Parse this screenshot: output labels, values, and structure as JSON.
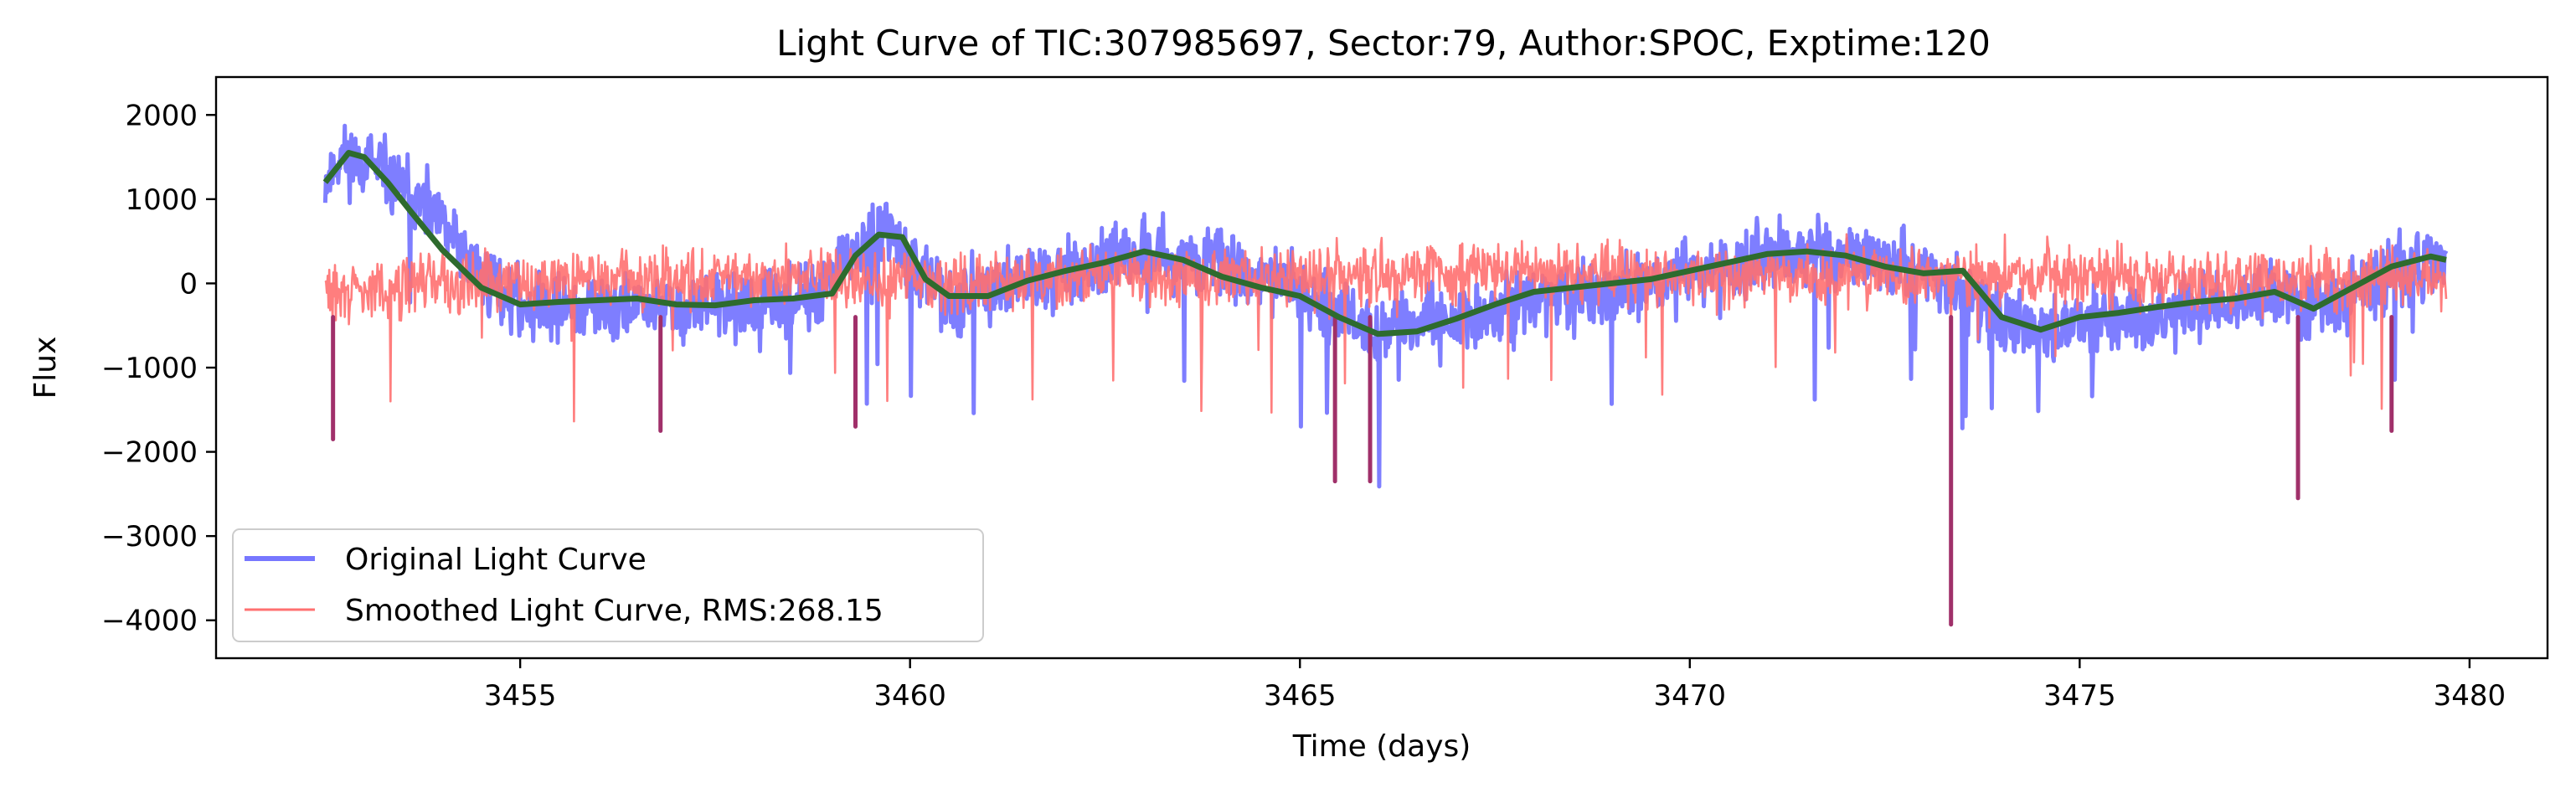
{
  "chart_data": {
    "type": "line",
    "title": "Light Curve of TIC:307985697, Sector:79, Author:SPOC, Exptime:120",
    "xlabel": "Time (days)",
    "ylabel": "Flux",
    "xlim": [
      3451.1,
      3481.0
    ],
    "ylim": [
      -4450,
      2450
    ],
    "xticks": [
      3455,
      3460,
      3465,
      3470,
      3475,
      3480
    ],
    "yticks": [
      2000,
      1000,
      0,
      -1000,
      -2000,
      -3000,
      -4000
    ],
    "xtick_labels": [
      "3455",
      "3460",
      "3465",
      "3470",
      "3475",
      "3480"
    ],
    "ytick_labels": [
      "2000",
      "1000",
      "0",
      "−1000",
      "−2000",
      "−3000",
      "−4000"
    ],
    "grid": false,
    "legend": {
      "position": "lower-left"
    },
    "series": [
      {
        "name": "Original Light Curve",
        "color": "#7777ff",
        "style": "noisy-band",
        "x": [
          3452.5,
          3452.7,
          3453.0,
          3453.5,
          3454.0,
          3454.5,
          3455.0,
          3456.0,
          3457.0,
          3458.0,
          3458.8,
          3459.1,
          3459.4,
          3459.7,
          3460.0,
          3460.5,
          3461.0,
          3462.0,
          3463.0,
          3464.0,
          3465.0,
          3465.5,
          3466.0,
          3467.0,
          3468.0,
          3469.0,
          3470.0,
          3471.0,
          3471.6,
          3472.5,
          3473.0,
          3473.5,
          3474.0,
          3475.0,
          3476.0,
          3477.0,
          3477.6,
          3478.0,
          3479.0,
          3479.7
        ],
        "values": [
          1200,
          1500,
          1450,
          1100,
          700,
          100,
          -250,
          -300,
          -300,
          -250,
          -200,
          200,
          400,
          700,
          150,
          -150,
          -50,
          150,
          350,
          250,
          -100,
          -300,
          -550,
          -450,
          -200,
          -100,
          100,
          300,
          350,
          250,
          150,
          -100,
          -500,
          -500,
          -400,
          -250,
          -150,
          -300,
          100,
          300
        ],
        "noise_sigma": 350
      },
      {
        "name": "Smoothed Light Curve, RMS:268.15",
        "color": "#ff7070",
        "style": "noisy-band",
        "x": [
          3452.5,
          3453.0,
          3453.5,
          3454.0,
          3455.0,
          3456.0,
          3457.0,
          3458.0,
          3459.0,
          3459.5,
          3460.0,
          3461.0,
          3462.0,
          3463.0,
          3464.0,
          3465.0,
          3465.5,
          3466.0,
          3467.0,
          3468.0,
          3469.0,
          3470.0,
          3471.0,
          3472.0,
          3473.0,
          3473.5,
          3474.0,
          3475.0,
          3476.0,
          3477.0,
          3478.0,
          3479.0,
          3479.7
        ],
        "values": [
          -100,
          -100,
          0,
          50,
          50,
          50,
          50,
          50,
          50,
          0,
          50,
          0,
          50,
          100,
          50,
          50,
          100,
          100,
          150,
          150,
          100,
          100,
          100,
          100,
          50,
          100,
          100,
          100,
          50,
          50,
          50,
          50,
          50
        ],
        "noise_sigma": 310
      },
      {
        "name": "",
        "color": "#2e6b2e",
        "style": "trend",
        "x": [
          3452.5,
          3452.8,
          3453.0,
          3453.3,
          3453.6,
          3454.0,
          3454.5,
          3455.0,
          3455.5,
          3456.0,
          3456.5,
          3457.0,
          3457.5,
          3458.0,
          3458.5,
          3459.0,
          3459.3,
          3459.6,
          3459.9,
          3460.2,
          3460.5,
          3461.0,
          3461.5,
          3462.0,
          3462.5,
          3463.0,
          3463.5,
          3464.0,
          3464.5,
          3465.0,
          3465.5,
          3466.0,
          3466.5,
          3467.0,
          3467.5,
          3468.0,
          3468.5,
          3469.0,
          3469.5,
          3470.0,
          3470.5,
          3471.0,
          3471.5,
          3472.0,
          3472.5,
          3473.0,
          3473.5,
          3474.0,
          3474.5,
          3475.0,
          3475.5,
          3476.0,
          3476.5,
          3477.0,
          3477.5,
          3478.0,
          3478.5,
          3479.0,
          3479.5,
          3479.7
        ],
        "values": [
          1200,
          1550,
          1500,
          1200,
          850,
          400,
          -50,
          -250,
          -220,
          -200,
          -180,
          -250,
          -260,
          -200,
          -180,
          -120,
          330,
          580,
          550,
          50,
          -150,
          -150,
          30,
          150,
          250,
          380,
          280,
          80,
          -50,
          -150,
          -400,
          -600,
          -570,
          -420,
          -250,
          -100,
          -50,
          0,
          50,
          150,
          250,
          350,
          380,
          330,
          200,
          120,
          150,
          -400,
          -550,
          -400,
          -350,
          -280,
          -220,
          -180,
          -100,
          -300,
          -50,
          200,
          320,
          280
        ]
      }
    ]
  }
}
